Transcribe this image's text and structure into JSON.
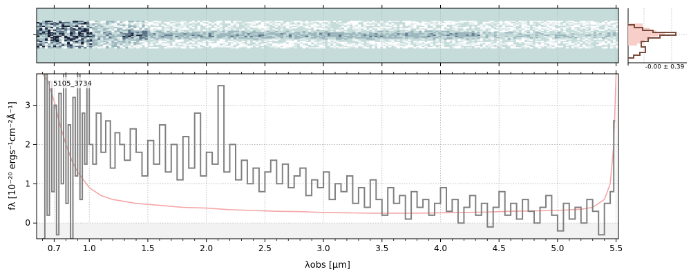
{
  "colors": {
    "spectrum": "#808080",
    "error": "#f4a6a6",
    "grid": "#b0b0b0",
    "zero_band": "#f2f2f2",
    "twod_background": "#c6dcdb",
    "twod_dark": "#1a2038",
    "histogram": "#7a4a3a",
    "histogram_fill": "#f6c9c2"
  },
  "chart_data": [
    {
      "type": "heatmap",
      "description_key": "2d_spectrum",
      "x_axis": "main_wavelength_axis",
      "xlim": [
        0.55,
        5.52
      ]
    },
    {
      "type": "histogram",
      "annotation": "-0.00 ± 0.39"
    },
    {
      "type": "line",
      "label": "5105_3734",
      "xlabel": "λobs [μm]",
      "ylabel": "fλ [10⁻²⁰ ergs⁻¹cm⁻²Å⁻¹]",
      "xlim": [
        0.55,
        5.52
      ],
      "ylim": [
        -0.4,
        3.8
      ],
      "xticks": [
        0.7,
        1.0,
        1.5,
        2.0,
        2.5,
        3.0,
        3.5,
        4.0,
        4.5,
        5.0,
        5.5
      ],
      "xtick_labels": [
        "0.7",
        "1.0",
        "1.5",
        "2.0",
        "2.5",
        "3.0",
        "3.5",
        "4.0",
        "4.5",
        "5.0",
        "5.5"
      ],
      "yticks": [
        0,
        1,
        2,
        3
      ],
      "ytick_labels": [
        "0",
        "1",
        "2",
        "3"
      ],
      "grid": true,
      "series": [
        {
          "role": "flux",
          "x": [
            0.6,
            0.62,
            0.64,
            0.66,
            0.68,
            0.7,
            0.72,
            0.74,
            0.76,
            0.78,
            0.8,
            0.82,
            0.84,
            0.86,
            0.88,
            0.9,
            0.92,
            0.94,
            0.96,
            0.98,
            1.0,
            1.03,
            1.06,
            1.1,
            1.14,
            1.18,
            1.22,
            1.26,
            1.3,
            1.35,
            1.4,
            1.45,
            1.5,
            1.55,
            1.6,
            1.65,
            1.7,
            1.75,
            1.8,
            1.85,
            1.9,
            1.95,
            2.0,
            2.05,
            2.1,
            2.15,
            2.2,
            2.25,
            2.3,
            2.35,
            2.4,
            2.45,
            2.5,
            2.55,
            2.6,
            2.65,
            2.7,
            2.75,
            2.8,
            2.85,
            2.9,
            2.95,
            3.0,
            3.05,
            3.1,
            3.15,
            3.2,
            3.25,
            3.3,
            3.35,
            3.4,
            3.45,
            3.5,
            3.55,
            3.6,
            3.65,
            3.7,
            3.75,
            3.8,
            3.85,
            3.9,
            3.95,
            4.0,
            4.05,
            4.1,
            4.15,
            4.2,
            4.25,
            4.3,
            4.35,
            4.4,
            4.45,
            4.5,
            4.55,
            4.6,
            4.65,
            4.7,
            4.75,
            4.8,
            4.85,
            4.9,
            4.95,
            5.0,
            5.05,
            5.1,
            5.15,
            5.2,
            5.25,
            5.3,
            5.35,
            5.4,
            5.45,
            5.48
          ],
          "y": [
            -0.4,
            3.8,
            0.2,
            3.6,
            0.8,
            3.0,
            -0.3,
            3.3,
            1.0,
            3.8,
            0.5,
            2.5,
            -0.4,
            3.2,
            1.2,
            3.8,
            0.6,
            2.8,
            1.5,
            3.5,
            2.0,
            1.5,
            2.8,
            1.8,
            2.6,
            1.4,
            2.3,
            2.0,
            1.6,
            2.4,
            1.8,
            1.2,
            2.1,
            1.5,
            2.5,
            1.3,
            2.0,
            1.1,
            2.2,
            1.4,
            2.8,
            1.2,
            1.8,
            1.5,
            3.5,
            1.3,
            2.0,
            1.1,
            1.6,
            1.0,
            1.4,
            0.8,
            1.3,
            1.6,
            1.0,
            1.5,
            0.9,
            1.2,
            1.4,
            0.7,
            1.1,
            0.9,
            1.3,
            0.6,
            1.0,
            0.8,
            1.2,
            0.5,
            0.9,
            0.4,
            1.1,
            0.6,
            0.2,
            0.9,
            0.5,
            0.7,
            0.1,
            0.8,
            0.4,
            0.6,
            0.2,
            0.5,
            0.9,
            0.3,
            0.6,
            0.0,
            0.4,
            0.7,
            0.2,
            0.5,
            -0.1,
            0.4,
            0.8,
            0.2,
            0.5,
            0.1,
            0.6,
            0.3,
            0.0,
            0.4,
            0.7,
            0.2,
            -0.2,
            0.5,
            0.1,
            0.4,
            0.0,
            0.6,
            0.3,
            -0.3,
            0.5,
            0.8,
            2.6
          ]
        },
        {
          "role": "error",
          "x": [
            0.6,
            0.65,
            0.7,
            0.75,
            0.8,
            0.85,
            0.9,
            0.95,
            1.0,
            1.1,
            1.2,
            1.4,
            1.6,
            1.8,
            2.0,
            2.2,
            2.4,
            2.6,
            2.8,
            3.0,
            3.2,
            3.4,
            3.6,
            3.8,
            4.0,
            4.2,
            4.4,
            4.6,
            4.8,
            5.0,
            5.2,
            5.3,
            5.4,
            5.45,
            5.48,
            5.5
          ],
          "y": [
            3.8,
            3.6,
            3.1,
            2.5,
            2.0,
            1.6,
            1.3,
            1.1,
            0.9,
            0.7,
            0.6,
            0.5,
            0.45,
            0.4,
            0.38,
            0.34,
            0.32,
            0.3,
            0.29,
            0.27,
            0.26,
            0.25,
            0.25,
            0.25,
            0.26,
            0.27,
            0.28,
            0.3,
            0.31,
            0.32,
            0.35,
            0.4,
            0.6,
            1.0,
            2.0,
            3.8
          ]
        }
      ]
    }
  ]
}
